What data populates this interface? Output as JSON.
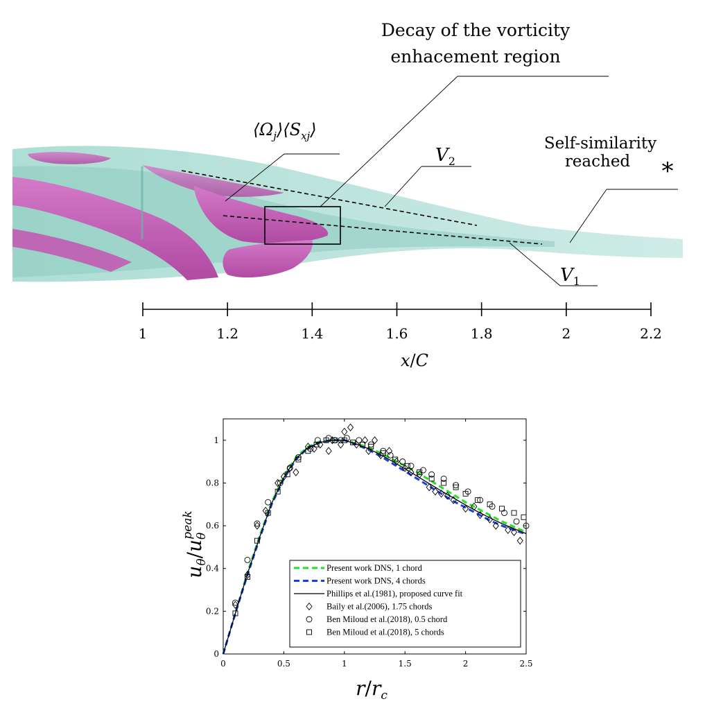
{
  "top_figure": {
    "annotations": {
      "decay_line1": "Decay of the vorticity",
      "decay_line2": "enhacement region",
      "omega_label": "⟨Ω",
      "omega_sub": "j",
      "s_label": "⟩⟨S",
      "s_sub": "xj",
      "close": "⟩",
      "v2_main": "V",
      "v2_sub": "2",
      "v1_main": "V",
      "v1_sub": "1",
      "self_line1": "Self-similarity",
      "self_line2": "reached",
      "asterisk": "*"
    },
    "axis": {
      "ticks": [
        "1",
        "1.2",
        "1.4",
        "1.6",
        "1.8",
        "2",
        "2.2"
      ],
      "label_x": "x",
      "label_slash": "/",
      "label_c": "C"
    }
  },
  "chart_data": {
    "type": "line",
    "xlabel": "r/r_c",
    "ylabel": "u_θ/u_θ^peak",
    "xlim": [
      0,
      2.5
    ],
    "ylim": [
      0,
      1.1
    ],
    "xticks": [
      "0",
      "0.5",
      "1",
      "1.5",
      "2",
      "2.5"
    ],
    "yticks": [
      "0",
      "0.2",
      "0.4",
      "0.6",
      "0.8",
      "1"
    ],
    "legend_position": "bottom-center",
    "series": [
      {
        "name": "Present work DNS, 1 chord",
        "style": "dashed",
        "color": "#22e022",
        "x": [
          0,
          0.1,
          0.2,
          0.3,
          0.4,
          0.5,
          0.6,
          0.7,
          0.8,
          0.9,
          1.0,
          1.1,
          1.2,
          1.3,
          1.4,
          1.5,
          1.6,
          1.7,
          1.8,
          1.9,
          2.0,
          2.1,
          2.2,
          2.3,
          2.4,
          2.5
        ],
        "y": [
          0,
          0.19,
          0.38,
          0.55,
          0.71,
          0.83,
          0.92,
          0.97,
          0.995,
          1.0,
          1.0,
          0.985,
          0.965,
          0.94,
          0.91,
          0.88,
          0.85,
          0.815,
          0.78,
          0.745,
          0.71,
          0.68,
          0.65,
          0.62,
          0.595,
          0.57
        ]
      },
      {
        "name": "Present work DNS, 4 chords",
        "style": "dashed",
        "color": "#1a3fe0",
        "x": [
          0,
          0.1,
          0.2,
          0.3,
          0.4,
          0.5,
          0.6,
          0.7,
          0.8,
          0.9,
          1.0,
          1.1,
          1.2,
          1.3,
          1.4,
          1.5,
          1.6,
          1.7,
          1.8,
          1.9,
          2.0,
          2.1,
          2.2,
          2.3,
          2.4,
          2.5
        ],
        "y": [
          0,
          0.19,
          0.37,
          0.54,
          0.7,
          0.82,
          0.91,
          0.965,
          0.99,
          1.0,
          1.0,
          0.98,
          0.955,
          0.925,
          0.89,
          0.855,
          0.82,
          0.785,
          0.75,
          0.715,
          0.685,
          0.655,
          0.625,
          0.6,
          0.58,
          0.56
        ]
      },
      {
        "name": "Phillips et al.(1981), proposed curve fit",
        "style": "solid",
        "color": "#000000",
        "x": [
          0,
          0.1,
          0.2,
          0.3,
          0.4,
          0.5,
          0.6,
          0.7,
          0.8,
          0.9,
          1.0,
          1.1,
          1.2,
          1.3,
          1.4,
          1.5,
          1.6,
          1.7,
          1.8,
          1.9,
          2.0,
          2.1,
          2.2,
          2.3,
          2.4,
          2.5
        ],
        "y": [
          0,
          0.19,
          0.375,
          0.545,
          0.705,
          0.825,
          0.915,
          0.965,
          0.99,
          1.0,
          1.0,
          0.982,
          0.96,
          0.932,
          0.9,
          0.866,
          0.832,
          0.797,
          0.763,
          0.73,
          0.697,
          0.666,
          0.637,
          0.61,
          0.586,
          0.563
        ]
      },
      {
        "name": "Baily et al.(2006), 1.75 chords",
        "style": "marker",
        "marker": "diamond",
        "x": [
          0.1,
          0.2,
          0.28,
          0.35,
          0.45,
          0.5,
          0.55,
          0.6,
          0.7,
          0.75,
          0.8,
          0.87,
          0.9,
          0.97,
          1.0,
          1.05,
          1.1,
          1.17,
          1.2,
          1.25,
          1.3,
          1.37,
          1.43,
          1.5,
          1.55,
          1.62,
          1.7,
          1.75,
          1.8,
          1.85,
          1.9,
          2.0,
          2.07,
          2.12,
          2.2,
          2.25,
          2.35,
          2.4,
          2.45
        ],
        "y": [
          0.23,
          0.37,
          0.6,
          0.67,
          0.8,
          0.83,
          0.87,
          0.85,
          0.97,
          0.96,
          0.98,
          0.95,
          1.0,
          0.98,
          1.04,
          1.06,
          0.98,
          1.0,
          0.95,
          1.0,
          0.93,
          0.95,
          0.9,
          0.87,
          0.85,
          0.84,
          0.78,
          0.76,
          0.75,
          0.74,
          0.72,
          0.68,
          0.69,
          0.65,
          0.63,
          0.6,
          0.58,
          0.57,
          0.53
        ]
      },
      {
        "name": "Ben Miloud et al.(2018), 0.5 chord",
        "style": "marker",
        "marker": "circle",
        "x": [
          0.1,
          0.2,
          0.28,
          0.37,
          0.47,
          0.55,
          0.62,
          0.72,
          0.78,
          0.87,
          0.92,
          0.97,
          1.02,
          1.12,
          1.22,
          1.32,
          1.38,
          1.48,
          1.55,
          1.65,
          1.72,
          1.82,
          1.92,
          2.02,
          2.12,
          2.22,
          2.32,
          2.42,
          2.5
        ],
        "y": [
          0.24,
          0.44,
          0.61,
          0.71,
          0.8,
          0.87,
          0.92,
          0.96,
          1.0,
          1.01,
          1.0,
          1.0,
          1.01,
          1.0,
          0.98,
          0.95,
          0.93,
          0.9,
          0.88,
          0.86,
          0.84,
          0.82,
          0.79,
          0.76,
          0.72,
          0.69,
          0.66,
          0.62,
          0.6
        ]
      },
      {
        "name": "Ben Miloud et al.(2018), 5 chords",
        "style": "marker",
        "marker": "square",
        "x": [
          0.1,
          0.2,
          0.28,
          0.37,
          0.45,
          0.53,
          0.62,
          0.7,
          0.77,
          0.85,
          0.92,
          1.0,
          1.07,
          1.15,
          1.22,
          1.32,
          1.42,
          1.52,
          1.62,
          1.72,
          1.82,
          1.92,
          2.0,
          2.1,
          2.2,
          2.3,
          2.4,
          2.48
        ],
        "y": [
          0.19,
          0.36,
          0.53,
          0.66,
          0.76,
          0.84,
          0.91,
          0.95,
          0.98,
          1.0,
          1.0,
          1.0,
          0.99,
          0.98,
          0.97,
          0.94,
          0.91,
          0.88,
          0.85,
          0.82,
          0.8,
          0.78,
          0.75,
          0.72,
          0.7,
          0.68,
          0.66,
          0.64
        ]
      }
    ]
  }
}
